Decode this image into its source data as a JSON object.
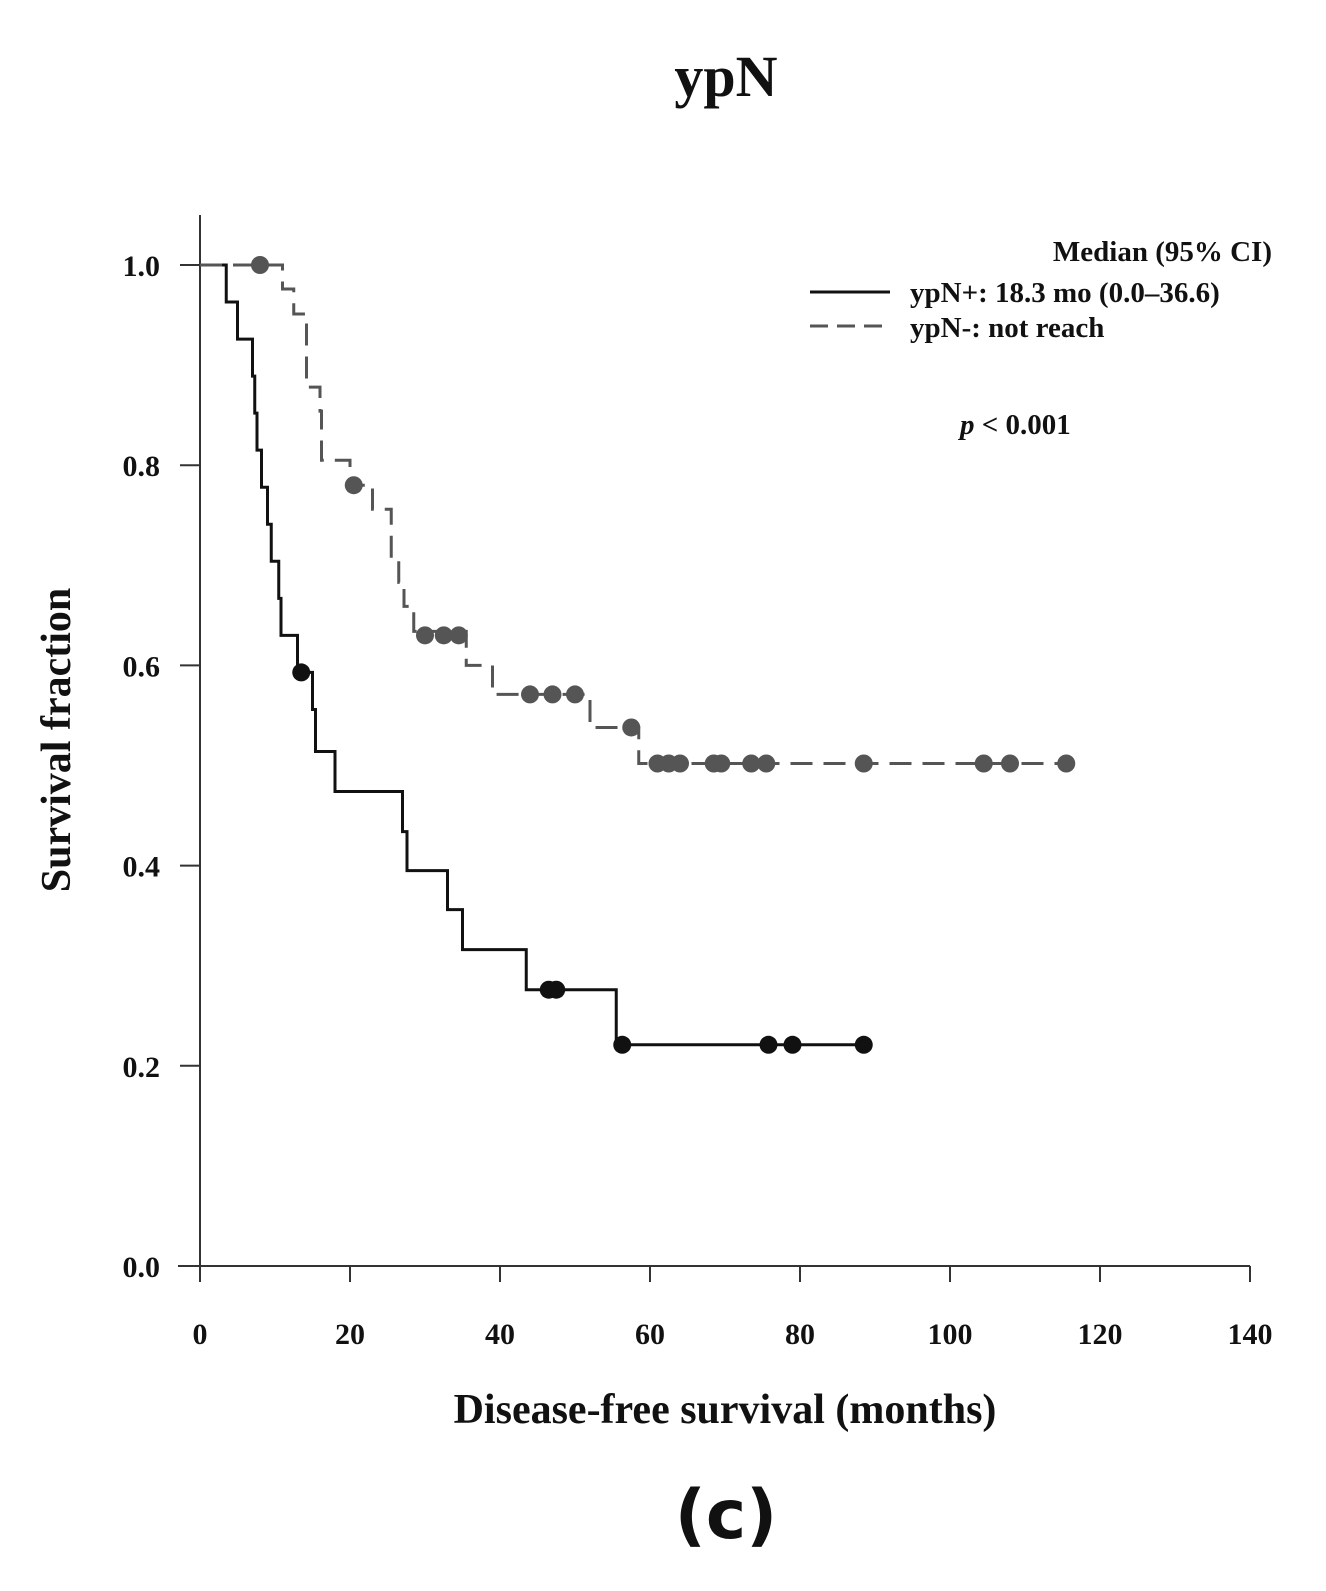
{
  "chart_data": {
    "type": "line",
    "subtype": "kaplan-meier",
    "title": "ypN",
    "xlabel": "Disease-free survival (months)",
    "ylabel": "Survival fraction",
    "xlim": [
      0,
      140
    ],
    "ylim": [
      0,
      1.05
    ],
    "xticks": [
      0,
      20,
      40,
      60,
      80,
      100,
      120,
      140
    ],
    "yticks": [
      0.0,
      0.2,
      0.4,
      0.6,
      0.8,
      1.0
    ],
    "ytick_labels": [
      "0.0",
      "0.2",
      "0.4",
      "0.6",
      "0.8",
      "1.0"
    ],
    "grid": false,
    "legend": {
      "position": "top-right",
      "header": "Median (95% CI)",
      "entries": [
        {
          "series": 0,
          "label": "ypN+: 18.3 mo (0.0–36.6)"
        },
        {
          "series": 1,
          "label": "ypN-: not reach"
        }
      ]
    },
    "annotations": {
      "p_symbol": "p",
      "p_rest": " < 0.001"
    },
    "panel_label": "(c)",
    "series": [
      {
        "name": "ypN+",
        "color": "#111111",
        "style": "solid",
        "steps": [
          [
            0,
            1.0
          ],
          [
            3.5,
            0.963
          ],
          [
            5,
            0.926
          ],
          [
            7,
            0.889
          ],
          [
            7.3,
            0.852
          ],
          [
            7.6,
            0.815
          ],
          [
            8.2,
            0.778
          ],
          [
            9,
            0.741
          ],
          [
            9.5,
            0.704
          ],
          [
            10.5,
            0.667
          ],
          [
            10.8,
            0.63
          ],
          [
            13,
            0.593
          ],
          [
            15,
            0.556
          ],
          [
            15.4,
            0.514
          ],
          [
            18,
            0.474
          ],
          [
            27,
            0.434
          ],
          [
            27.6,
            0.395
          ],
          [
            33,
            0.356
          ],
          [
            35,
            0.316
          ],
          [
            43.5,
            0.276
          ],
          [
            55.5,
            0.221
          ],
          [
            88.5,
            0.221
          ]
        ],
        "censored": [
          [
            13.5,
            0.593
          ],
          [
            46.5,
            0.276
          ],
          [
            47.5,
            0.276
          ],
          [
            56.3,
            0.221
          ],
          [
            75.8,
            0.221
          ],
          [
            79,
            0.221
          ],
          [
            88.5,
            0.221
          ]
        ]
      },
      {
        "name": "ypN-",
        "color": "#555555",
        "style": "dashed",
        "steps": [
          [
            0,
            1.0
          ],
          [
            11,
            0.976
          ],
          [
            12.5,
            0.951
          ],
          [
            14.2,
            0.878
          ],
          [
            16,
            0.854
          ],
          [
            16.2,
            0.805
          ],
          [
            20,
            0.78
          ],
          [
            23,
            0.756
          ],
          [
            25.5,
            0.707
          ],
          [
            26.5,
            0.683
          ],
          [
            27.2,
            0.659
          ],
          [
            28.5,
            0.634
          ],
          [
            35.5,
            0.6
          ],
          [
            39,
            0.571
          ],
          [
            52,
            0.538
          ],
          [
            58.5,
            0.502
          ],
          [
            115.5,
            0.502
          ]
        ],
        "censored": [
          [
            8,
            1.0
          ],
          [
            20.5,
            0.78
          ],
          [
            30,
            0.63
          ],
          [
            32.5,
            0.63
          ],
          [
            34.5,
            0.63
          ],
          [
            44,
            0.571
          ],
          [
            47,
            0.571
          ],
          [
            50,
            0.571
          ],
          [
            57.5,
            0.538
          ],
          [
            61,
            0.502
          ],
          [
            62.5,
            0.502
          ],
          [
            64,
            0.502
          ],
          [
            68.5,
            0.502
          ],
          [
            69.5,
            0.502
          ],
          [
            73.5,
            0.502
          ],
          [
            75.5,
            0.502
          ],
          [
            88.5,
            0.502
          ],
          [
            104.5,
            0.502
          ],
          [
            108,
            0.502
          ],
          [
            115.5,
            0.502
          ]
        ]
      }
    ]
  }
}
